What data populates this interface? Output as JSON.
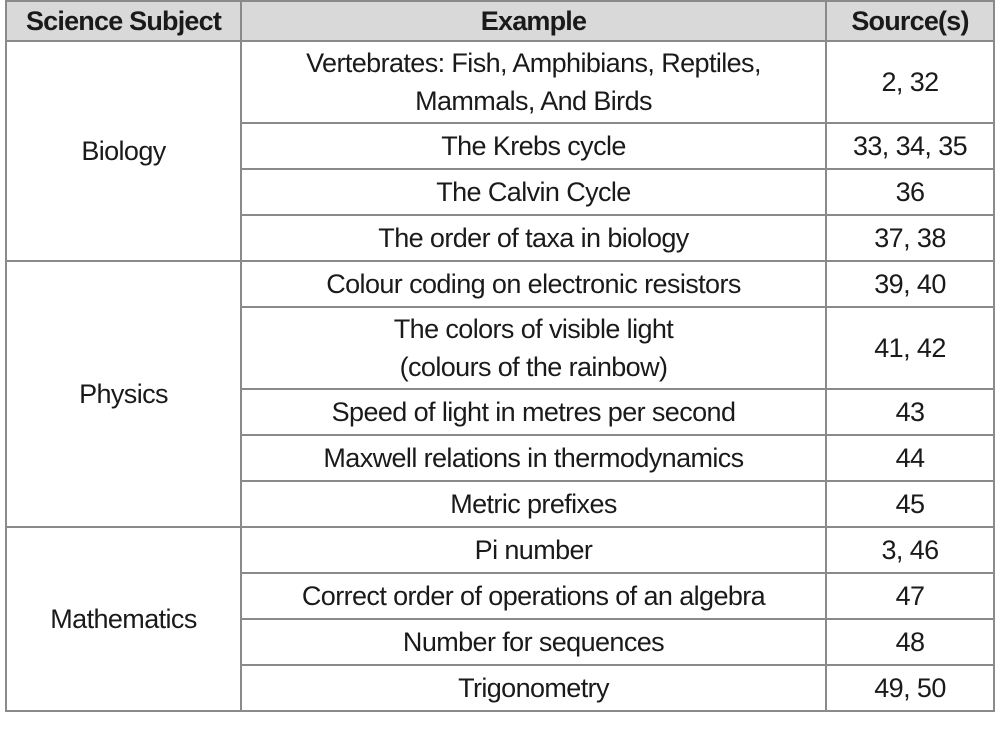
{
  "table": {
    "headers": {
      "subject": "Science Subject",
      "example": "Example",
      "sources": "Source(s)"
    },
    "groups": [
      {
        "subject": "Biology",
        "rows": [
          {
            "example_lines": [
              "Vertebrates: Fish, Amphibians, Reptiles,",
              "Mammals, And Birds"
            ],
            "sources": "2, 32"
          },
          {
            "example_lines": [
              "The Krebs cycle"
            ],
            "sources": "33, 34, 35"
          },
          {
            "example_lines": [
              "The Calvin Cycle"
            ],
            "sources": "36"
          },
          {
            "example_lines": [
              "The order of taxa in biology"
            ],
            "sources": "37, 38"
          }
        ]
      },
      {
        "subject": "Physics",
        "rows": [
          {
            "example_lines": [
              "Colour coding on electronic resistors"
            ],
            "sources": "39, 40"
          },
          {
            "example_lines": [
              "The colors of visible light",
              "(colours of the rainbow)"
            ],
            "sources": "41, 42"
          },
          {
            "example_lines": [
              "Speed of light in metres per second"
            ],
            "sources": "43"
          },
          {
            "example_lines": [
              "Maxwell relations in thermodynamics"
            ],
            "sources": "44"
          },
          {
            "example_lines": [
              "Metric prefixes"
            ],
            "sources": "45"
          }
        ]
      },
      {
        "subject": "Mathematics",
        "rows": [
          {
            "example_lines": [
              "Pi number"
            ],
            "sources": "3, 46"
          },
          {
            "example_lines": [
              "Correct order of operations of an algebra"
            ],
            "sources": "47"
          },
          {
            "example_lines": [
              "Number for sequences"
            ],
            "sources": "48"
          },
          {
            "example_lines": [
              "Trigonometry"
            ],
            "sources": "49, 50"
          }
        ]
      }
    ]
  },
  "colors": {
    "header_background": "#d9d9d9",
    "border": "#8a8a8a",
    "text": "#1a1a1a"
  }
}
